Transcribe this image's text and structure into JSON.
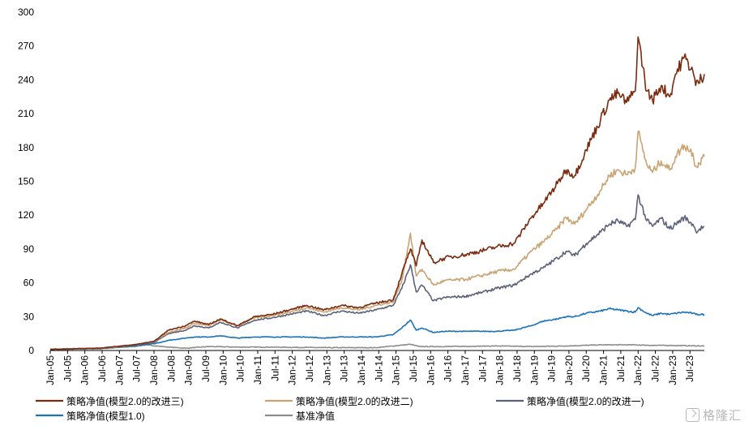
{
  "chart_data": {
    "type": "line",
    "ylim": [
      0,
      300
    ],
    "yticks": [
      0,
      30,
      60,
      90,
      120,
      150,
      180,
      210,
      240,
      270,
      300
    ],
    "xlim": [
      "2005-01",
      "2023-12"
    ],
    "xtick_labels": [
      "Jan-05",
      "Jul-05",
      "Jan-06",
      "Jul-06",
      "Jan-07",
      "Jul-07",
      "Jan-08",
      "Jul-08",
      "Jan-09",
      "Jul-09",
      "Jan-10",
      "Jul-10",
      "Jan-11",
      "Jul-11",
      "Jan-12",
      "Jul-12",
      "Jan-13",
      "Jul-13",
      "Jan-14",
      "Jul-14",
      "Jan-15",
      "Jul-15",
      "Jan-16",
      "Jul-16",
      "Jan-17",
      "Jul-17",
      "Jan-18",
      "Jul-18",
      "Jan-19",
      "Jul-19",
      "Jan-20",
      "Jul-20",
      "Jan-21",
      "Jul-21",
      "Jan-22",
      "Jul-22",
      "Jan-23",
      "Jul-23"
    ],
    "grid": false,
    "legend_position": "bottom",
    "series": [
      {
        "name": "策略净值(模型2.0的改进三)",
        "color": "#7b2a0f",
        "points": [
          [
            "2005-01",
            1
          ],
          [
            "2006-06",
            2
          ],
          [
            "2007-06",
            5
          ],
          [
            "2008-01",
            8
          ],
          [
            "2008-06",
            18
          ],
          [
            "2008-12",
            22
          ],
          [
            "2009-03",
            26
          ],
          [
            "2009-08",
            23
          ],
          [
            "2009-12",
            28
          ],
          [
            "2010-06",
            22
          ],
          [
            "2010-12",
            30
          ],
          [
            "2011-06",
            32
          ],
          [
            "2011-12",
            36
          ],
          [
            "2012-06",
            40
          ],
          [
            "2012-12",
            36
          ],
          [
            "2013-06",
            40
          ],
          [
            "2013-12",
            38
          ],
          [
            "2014-06",
            42
          ],
          [
            "2014-12",
            45
          ],
          [
            "2015-03",
            68
          ],
          [
            "2015-06",
            90
          ],
          [
            "2015-08",
            75
          ],
          [
            "2015-10",
            98
          ],
          [
            "2016-02",
            78
          ],
          [
            "2016-06",
            82
          ],
          [
            "2017-01",
            85
          ],
          [
            "2017-06",
            88
          ],
          [
            "2017-12",
            92
          ],
          [
            "2018-06",
            95
          ],
          [
            "2018-12",
            118
          ],
          [
            "2019-04",
            130
          ],
          [
            "2019-09",
            148
          ],
          [
            "2019-12",
            160
          ],
          [
            "2020-03",
            155
          ],
          [
            "2020-07",
            178
          ],
          [
            "2020-12",
            205
          ],
          [
            "2021-03",
            222
          ],
          [
            "2021-06",
            228
          ],
          [
            "2021-09",
            220
          ],
          [
            "2021-12",
            230
          ],
          [
            "2022-01",
            278
          ],
          [
            "2022-04",
            230
          ],
          [
            "2022-06",
            222
          ],
          [
            "2022-09",
            235
          ],
          [
            "2022-12",
            225
          ],
          [
            "2023-02",
            245
          ],
          [
            "2023-05",
            260
          ],
          [
            "2023-08",
            248
          ],
          [
            "2023-09",
            235
          ],
          [
            "2023-12",
            245
          ]
        ]
      },
      {
        "name": "策略净值(模型2.0的改进二)",
        "color": "#c9a372",
        "points": [
          [
            "2005-01",
            1
          ],
          [
            "2006-06",
            2
          ],
          [
            "2007-06",
            5
          ],
          [
            "2008-01",
            8
          ],
          [
            "2008-06",
            16
          ],
          [
            "2008-12",
            20
          ],
          [
            "2009-03",
            24
          ],
          [
            "2009-08",
            22
          ],
          [
            "2009-12",
            27
          ],
          [
            "2010-06",
            22
          ],
          [
            "2010-12",
            29
          ],
          [
            "2011-06",
            31
          ],
          [
            "2011-12",
            34
          ],
          [
            "2012-06",
            38
          ],
          [
            "2012-12",
            34
          ],
          [
            "2013-06",
            38
          ],
          [
            "2013-12",
            36
          ],
          [
            "2014-06",
            40
          ],
          [
            "2014-12",
            43
          ],
          [
            "2015-03",
            62
          ],
          [
            "2015-06",
            104
          ],
          [
            "2015-08",
            66
          ],
          [
            "2015-10",
            72
          ],
          [
            "2016-02",
            58
          ],
          [
            "2016-06",
            62
          ],
          [
            "2017-01",
            63
          ],
          [
            "2017-06",
            66
          ],
          [
            "2017-12",
            70
          ],
          [
            "2018-06",
            72
          ],
          [
            "2018-12",
            88
          ],
          [
            "2019-04",
            96
          ],
          [
            "2019-09",
            108
          ],
          [
            "2019-12",
            118
          ],
          [
            "2020-03",
            112
          ],
          [
            "2020-07",
            125
          ],
          [
            "2020-12",
            142
          ],
          [
            "2021-03",
            155
          ],
          [
            "2021-06",
            160
          ],
          [
            "2021-09",
            156
          ],
          [
            "2021-12",
            162
          ],
          [
            "2022-01",
            194
          ],
          [
            "2022-04",
            165
          ],
          [
            "2022-06",
            158
          ],
          [
            "2022-09",
            168
          ],
          [
            "2022-12",
            160
          ],
          [
            "2023-02",
            172
          ],
          [
            "2023-05",
            182
          ],
          [
            "2023-08",
            175
          ],
          [
            "2023-09",
            163
          ],
          [
            "2023-12",
            172
          ]
        ]
      },
      {
        "name": "策略净值(模型2.0的改进一)",
        "color": "#5c6279",
        "points": [
          [
            "2005-01",
            1
          ],
          [
            "2006-06",
            2
          ],
          [
            "2007-06",
            5
          ],
          [
            "2008-01",
            7
          ],
          [
            "2008-06",
            15
          ],
          [
            "2008-12",
            18
          ],
          [
            "2009-03",
            22
          ],
          [
            "2009-08",
            20
          ],
          [
            "2009-12",
            25
          ],
          [
            "2010-06",
            20
          ],
          [
            "2010-12",
            27
          ],
          [
            "2011-06",
            29
          ],
          [
            "2011-12",
            32
          ],
          [
            "2012-06",
            35
          ],
          [
            "2012-12",
            31
          ],
          [
            "2013-06",
            35
          ],
          [
            "2013-12",
            33
          ],
          [
            "2014-06",
            36
          ],
          [
            "2014-12",
            40
          ],
          [
            "2015-03",
            55
          ],
          [
            "2015-06",
            76
          ],
          [
            "2015-08",
            52
          ],
          [
            "2015-10",
            58
          ],
          [
            "2016-02",
            44
          ],
          [
            "2016-06",
            47
          ],
          [
            "2017-01",
            48
          ],
          [
            "2017-06",
            51
          ],
          [
            "2017-12",
            55
          ],
          [
            "2018-06",
            58
          ],
          [
            "2018-12",
            68
          ],
          [
            "2019-04",
            73
          ],
          [
            "2019-09",
            82
          ],
          [
            "2019-12",
            88
          ],
          [
            "2020-03",
            84
          ],
          [
            "2020-07",
            95
          ],
          [
            "2020-12",
            105
          ],
          [
            "2021-03",
            112
          ],
          [
            "2021-06",
            115
          ],
          [
            "2021-09",
            110
          ],
          [
            "2021-12",
            116
          ],
          [
            "2022-01",
            138
          ],
          [
            "2022-04",
            115
          ],
          [
            "2022-06",
            110
          ],
          [
            "2022-09",
            117
          ],
          [
            "2022-12",
            108
          ],
          [
            "2023-02",
            112
          ],
          [
            "2023-05",
            118
          ],
          [
            "2023-08",
            112
          ],
          [
            "2023-09",
            106
          ],
          [
            "2023-12",
            110
          ]
        ]
      },
      {
        "name": "策略净值(模型1.0)",
        "color": "#1a72b8",
        "points": [
          [
            "2005-01",
            1
          ],
          [
            "2006-06",
            2
          ],
          [
            "2007-06",
            4
          ],
          [
            "2008-01",
            6
          ],
          [
            "2008-06",
            9
          ],
          [
            "2008-12",
            11
          ],
          [
            "2009-03",
            12
          ],
          [
            "2009-08",
            12
          ],
          [
            "2009-12",
            13
          ],
          [
            "2010-06",
            11
          ],
          [
            "2010-12",
            12
          ],
          [
            "2011-06",
            12
          ],
          [
            "2011-12",
            12
          ],
          [
            "2012-06",
            12
          ],
          [
            "2012-12",
            11
          ],
          [
            "2013-06",
            12
          ],
          [
            "2013-12",
            12
          ],
          [
            "2014-06",
            12
          ],
          [
            "2014-12",
            14
          ],
          [
            "2015-03",
            20
          ],
          [
            "2015-06",
            27
          ],
          [
            "2015-08",
            18
          ],
          [
            "2015-10",
            20
          ],
          [
            "2016-02",
            16
          ],
          [
            "2016-06",
            17
          ],
          [
            "2017-01",
            17
          ],
          [
            "2017-06",
            17
          ],
          [
            "2017-12",
            17
          ],
          [
            "2018-06",
            18
          ],
          [
            "2018-12",
            22
          ],
          [
            "2019-04",
            26
          ],
          [
            "2019-09",
            28
          ],
          [
            "2019-12",
            30
          ],
          [
            "2020-03",
            30
          ],
          [
            "2020-07",
            33
          ],
          [
            "2020-12",
            35
          ],
          [
            "2021-03",
            37
          ],
          [
            "2021-06",
            36
          ],
          [
            "2021-09",
            35
          ],
          [
            "2021-12",
            34
          ],
          [
            "2022-01",
            38
          ],
          [
            "2022-04",
            33
          ],
          [
            "2022-06",
            31
          ],
          [
            "2022-09",
            33
          ],
          [
            "2022-12",
            32
          ],
          [
            "2023-02",
            33
          ],
          [
            "2023-05",
            34
          ],
          [
            "2023-08",
            33
          ],
          [
            "2023-09",
            32
          ],
          [
            "2023-12",
            32
          ]
        ]
      },
      {
        "name": "基准净值",
        "color": "#8c8c8c",
        "points": [
          [
            "2005-01",
            1
          ],
          [
            "2006-06",
            1.5
          ],
          [
            "2007-06",
            3.5
          ],
          [
            "2007-10",
            5
          ],
          [
            "2008-06",
            3
          ],
          [
            "2008-12",
            2
          ],
          [
            "2009-08",
            3.5
          ],
          [
            "2010-06",
            3
          ],
          [
            "2011-06",
            3
          ],
          [
            "2012-12",
            2.5
          ],
          [
            "2013-12",
            2.5
          ],
          [
            "2014-06",
            2.5
          ],
          [
            "2015-06",
            5.5
          ],
          [
            "2015-09",
            3.5
          ],
          [
            "2016-06",
            3.5
          ],
          [
            "2017-12",
            4
          ],
          [
            "2018-12",
            3.5
          ],
          [
            "2019-12",
            4
          ],
          [
            "2020-12",
            5
          ],
          [
            "2021-12",
            5
          ],
          [
            "2022-06",
            4.5
          ],
          [
            "2022-12",
            4.5
          ],
          [
            "2023-12",
            4
          ]
        ]
      }
    ]
  }
}
